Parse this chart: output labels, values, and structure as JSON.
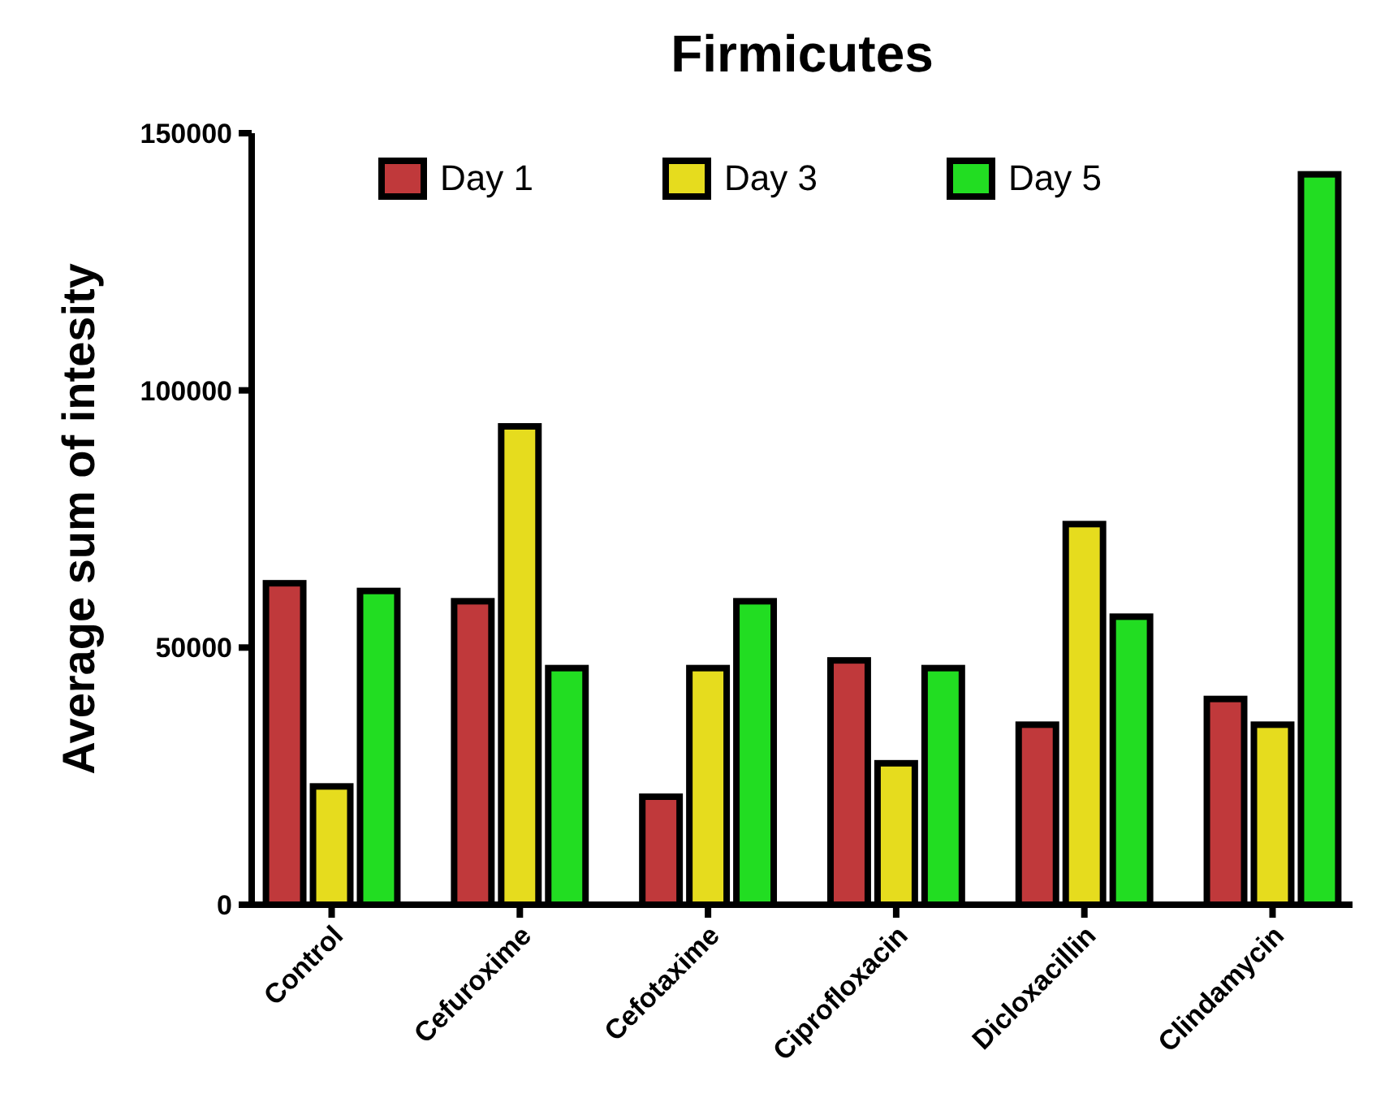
{
  "chart_data": {
    "type": "bar",
    "title": "Firmicutes",
    "ylabel": "Average sum of intesity",
    "categories": [
      "Control",
      "Cefuroxime",
      "Cefotaxime",
      "Ciprofloxacin",
      "Dicloxacillin",
      "Clindamycin"
    ],
    "series": [
      {
        "name": "Day 1",
        "color": "#c0393b",
        "values": [
          62500,
          59000,
          21000,
          47500,
          35000,
          40000
        ]
      },
      {
        "name": "Day 3",
        "color": "#e6dc1e",
        "values": [
          23000,
          93000,
          46000,
          27500,
          74000,
          35000
        ]
      },
      {
        "name": "Day 5",
        "color": "#22dd22",
        "values": [
          61000,
          46000,
          59000,
          46000,
          56000,
          142000
        ]
      }
    ],
    "ylim": [
      0,
      150000
    ],
    "yticks": [
      0,
      50000,
      100000,
      150000
    ],
    "grid": false,
    "legend": "top"
  }
}
